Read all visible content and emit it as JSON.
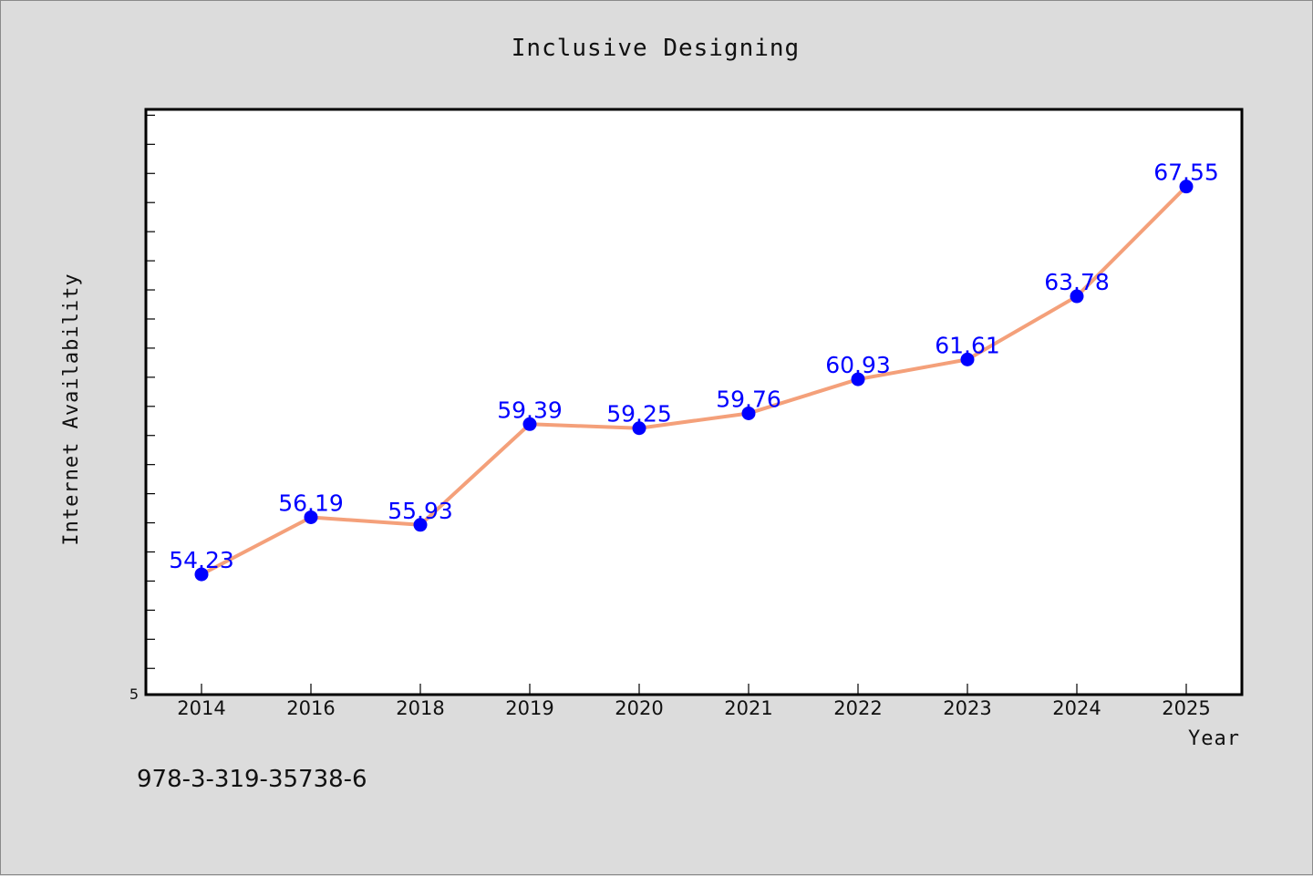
{
  "footnote": "978-3-319-35738-6",
  "chart_data": {
    "type": "line",
    "title": "Inclusive Designing",
    "xlabel": "Year",
    "ylabel": "Internet Availability",
    "categories": [
      "2014",
      "2016",
      "2018",
      "2019",
      "2020",
      "2021",
      "2022",
      "2023",
      "2024",
      "2025"
    ],
    "series": [
      {
        "values": [
          54.23,
          56.19,
          55.93,
          59.39,
          59.25,
          59.76,
          60.93,
          61.61,
          63.78,
          67.55
        ],
        "line_color": "#f4a07a",
        "marker_color": "#0000ff"
      }
    ],
    "y_tick_labels": [
      "5"
    ],
    "ylim": [
      50.1,
      70.2
    ],
    "grid": false,
    "legend": "none",
    "data_labels": true
  }
}
